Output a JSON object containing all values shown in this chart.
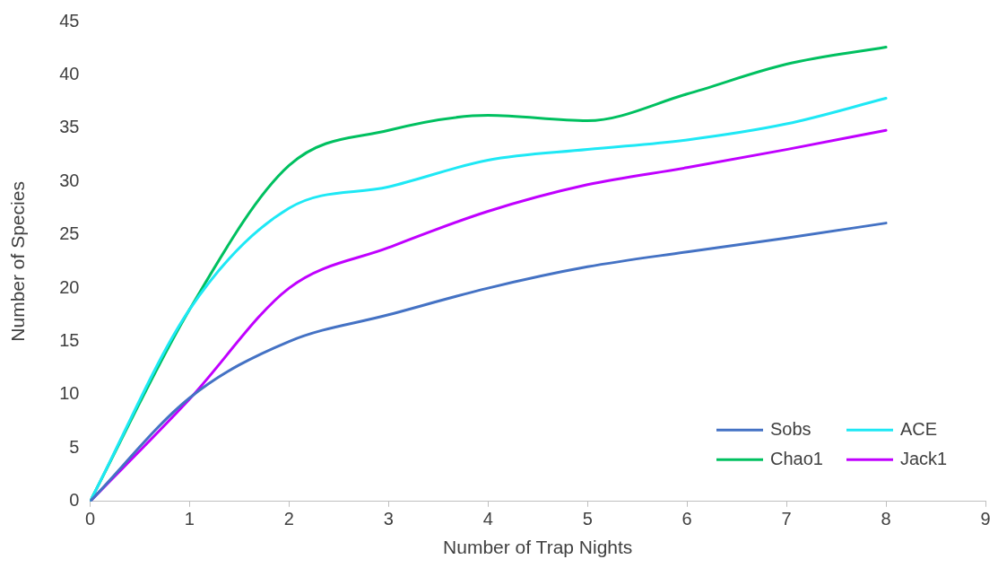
{
  "chart_data": {
    "type": "line",
    "xlabel": "Number of Trap Nights",
    "ylabel": "Number of Species",
    "x": [
      0,
      1,
      2,
      3,
      4,
      5,
      6,
      7,
      8
    ],
    "xlim": [
      0,
      9
    ],
    "xticks": [
      0,
      1,
      2,
      3,
      4,
      5,
      6,
      7,
      8,
      9
    ],
    "ylim": [
      0,
      45
    ],
    "yticks": [
      0,
      5,
      10,
      15,
      20,
      25,
      30,
      35,
      40,
      45
    ],
    "grid": false,
    "legend": "bottom right",
    "marker": "none",
    "line_style": "solid",
    "series": [
      {
        "name": "Sobs",
        "color": "#4472c4",
        "values": [
          0,
          9.7,
          15,
          17.5,
          20,
          22,
          23.4,
          24.7,
          26.1
        ]
      },
      {
        "name": "ACE",
        "color": "#1ee8f5",
        "values": [
          0,
          18,
          27.5,
          29.5,
          32,
          33,
          33.9,
          35.4,
          37.8
        ]
      },
      {
        "name": "Chao1",
        "color": "#00c060",
        "values": [
          0,
          18,
          31.5,
          34.8,
          36.2,
          35.7,
          38.2,
          41,
          42.6
        ]
      },
      {
        "name": "Jack1",
        "color": "#c000ff",
        "values": [
          0,
          9.6,
          20,
          23.8,
          27.2,
          29.7,
          31.3,
          33,
          34.8
        ]
      }
    ]
  }
}
